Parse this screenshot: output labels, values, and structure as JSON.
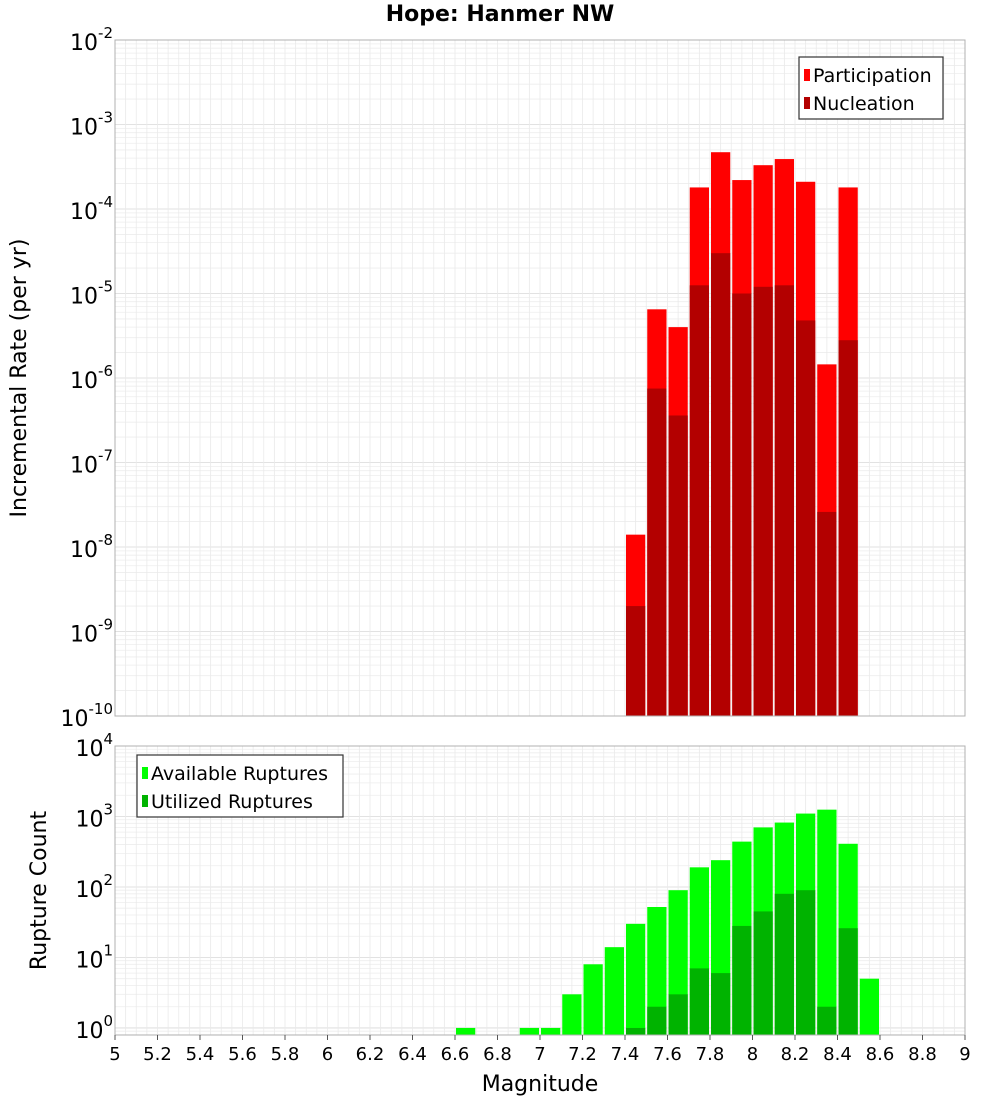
{
  "chart_data": [
    {
      "type": "bar",
      "title": "Hope: Hanmer NW",
      "xlabel": "",
      "ylabel": "Incremental Rate (per yr)",
      "yscale": "log",
      "ylim_exponents": [
        -10,
        -2
      ],
      "xlim": [
        5,
        9
      ],
      "bar_width": 0.1,
      "grid": true,
      "legend_position": "top-right",
      "y_ticks": [
        {
          "base": "10",
          "exp": "-10"
        },
        {
          "base": "10",
          "exp": "-9"
        },
        {
          "base": "10",
          "exp": "-8"
        },
        {
          "base": "10",
          "exp": "-7"
        },
        {
          "base": "10",
          "exp": "-6"
        },
        {
          "base": "10",
          "exp": "-5"
        },
        {
          "base": "10",
          "exp": "-4"
        },
        {
          "base": "10",
          "exp": "-3"
        },
        {
          "base": "10",
          "exp": "-2"
        }
      ],
      "x": [
        7.45,
        7.55,
        7.65,
        7.75,
        7.85,
        7.95,
        8.05,
        8.15,
        8.25,
        8.35,
        8.45
      ],
      "series": [
        {
          "name": "Participation",
          "color": "#ff0000",
          "values": [
            1.4e-08,
            6.5e-06,
            4e-06,
            0.00018,
            0.00047,
            0.00022,
            0.00033,
            0.00039,
            0.00021,
            1.45e-06,
            0.00018
          ]
        },
        {
          "name": "Nucleation",
          "color": "#b30000",
          "values": [
            2e-09,
            7.5e-07,
            3.6e-07,
            1.25e-05,
            3e-05,
            1e-05,
            1.2e-05,
            1.25e-05,
            4.8e-06,
            2.6e-08,
            2.8e-06
          ]
        }
      ]
    },
    {
      "type": "bar",
      "title": "",
      "xlabel": "Magnitude",
      "ylabel": "Rupture Count",
      "yscale": "log",
      "ylim_exponents": [
        -0.1,
        4
      ],
      "xlim": [
        5,
        9
      ],
      "bar_width": 0.1,
      "grid": true,
      "legend_position": "top-left",
      "y_ticks": [
        {
          "base": "10",
          "exp": "0"
        },
        {
          "base": "10",
          "exp": "1"
        },
        {
          "base": "10",
          "exp": "2"
        },
        {
          "base": "10",
          "exp": "3"
        },
        {
          "base": "10",
          "exp": "4"
        }
      ],
      "x_ticks": [
        "5",
        "5.2",
        "5.4",
        "5.6",
        "5.8",
        "6",
        "6.2",
        "6.4",
        "6.6",
        "6.8",
        "7",
        "7.2",
        "7.4",
        "7.6",
        "7.8",
        "8",
        "8.2",
        "8.4",
        "8.6",
        "8.8",
        "9"
      ],
      "series": [
        {
          "name": "Available Ruptures",
          "color": "#00ff00",
          "x": [
            6.65,
            6.95,
            7.05,
            7.15,
            7.25,
            7.35,
            7.45,
            7.55,
            7.65,
            7.75,
            7.85,
            7.95,
            8.05,
            8.15,
            8.25,
            8.35,
            8.45,
            8.55
          ],
          "values": [
            1,
            1,
            1,
            3,
            8,
            14,
            30,
            52,
            90,
            190,
            240,
            440,
            700,
            820,
            1100,
            1250,
            410,
            5
          ]
        },
        {
          "name": "Utilized Ruptures",
          "color": "#00b300",
          "x": [
            7.45,
            7.55,
            7.65,
            7.75,
            7.85,
            7.95,
            8.05,
            8.15,
            8.25,
            8.35,
            8.45
          ],
          "values": [
            1,
            2,
            3,
            7,
            6,
            28,
            45,
            80,
            90,
            2,
            26
          ]
        }
      ]
    }
  ]
}
